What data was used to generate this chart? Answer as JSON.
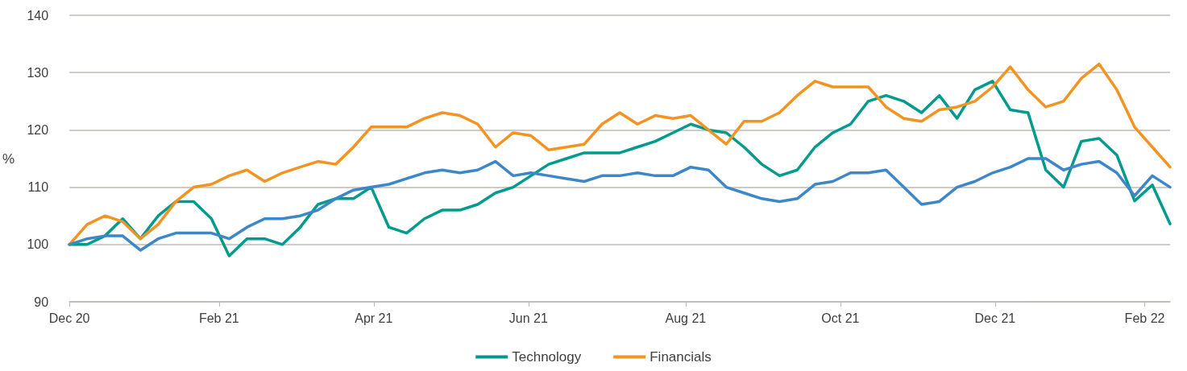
{
  "chart_data": {
    "type": "line",
    "ylabel": "%",
    "x": [
      "2020-12-31",
      "2021-01-07",
      "2021-01-14",
      "2021-01-21",
      "2021-01-28",
      "2021-02-04",
      "2021-02-11",
      "2021-02-18",
      "2021-02-25",
      "2021-03-04",
      "2021-03-11",
      "2021-03-18",
      "2021-03-25",
      "2021-04-01",
      "2021-04-08",
      "2021-04-15",
      "2021-04-22",
      "2021-04-29",
      "2021-05-06",
      "2021-05-13",
      "2021-05-20",
      "2021-05-27",
      "2021-06-03",
      "2021-06-10",
      "2021-06-17",
      "2021-06-24",
      "2021-07-01",
      "2021-07-08",
      "2021-07-15",
      "2021-07-22",
      "2021-07-29",
      "2021-08-05",
      "2021-08-12",
      "2021-08-19",
      "2021-08-26",
      "2021-09-02",
      "2021-09-09",
      "2021-09-16",
      "2021-09-23",
      "2021-09-30",
      "2021-10-07",
      "2021-10-14",
      "2021-10-21",
      "2021-10-28",
      "2021-11-04",
      "2021-11-11",
      "2021-11-18",
      "2021-11-25",
      "2021-12-02",
      "2021-12-09",
      "2021-12-16",
      "2021-12-23",
      "2021-12-30",
      "2022-01-06",
      "2022-01-13",
      "2022-01-20",
      "2022-01-27",
      "2022-02-03",
      "2022-02-10",
      "2022-02-17",
      "2022-02-24",
      "2022-03-03",
      "2022-03-10"
    ],
    "series": [
      {
        "name": "Technology",
        "color": "#009a8e",
        "values": [
          100,
          100,
          101.5,
          104.5,
          101,
          105,
          107.5,
          107.5,
          104.5,
          98,
          101,
          101,
          100,
          103,
          107,
          108,
          108,
          110,
          103,
          102,
          104.5,
          106,
          106,
          107,
          109,
          110,
          112,
          114,
          115,
          116,
          116,
          116,
          117,
          118,
          119.5,
          121,
          120,
          119.5,
          117,
          114,
          112,
          113,
          117,
          119.5,
          121,
          125,
          126,
          125,
          123,
          126,
          122,
          127,
          128.5,
          123.5,
          123,
          113,
          110,
          118,
          118.5,
          115.6,
          107.6,
          110.4,
          103.6
        ]
      },
      {
        "name": "Financials",
        "color": "#f39322",
        "values": [
          100,
          103.5,
          105,
          104,
          101,
          103.5,
          107.5,
          110,
          110.5,
          112,
          113,
          111,
          112.5,
          113.5,
          114.5,
          114,
          117,
          120.5,
          120.5,
          120.5,
          122,
          123,
          122.5,
          121,
          117,
          119.5,
          119,
          116.5,
          117,
          117.5,
          121,
          123,
          121,
          122.5,
          122,
          122.5,
          120,
          117.5,
          121.5,
          121.5,
          123,
          126,
          128.5,
          127.5,
          127.5,
          127.5,
          124,
          122,
          121.5,
          123.5,
          124,
          125,
          127.5,
          131,
          127,
          124,
          125,
          129,
          131.5,
          127,
          120.5,
          117,
          113.5
        ]
      },
      {
        "color": "#3d87c8",
        "values": [
          100,
          101,
          101.5,
          101.5,
          99,
          101,
          102,
          102,
          102,
          101,
          103,
          104.5,
          104.5,
          105,
          106,
          108,
          109.5,
          110,
          110.5,
          111.5,
          112.5,
          113,
          112.5,
          113,
          114.5,
          112,
          112.5,
          112,
          111.5,
          111,
          112,
          112,
          112.5,
          112,
          112,
          113.5,
          113,
          110,
          109,
          108,
          107.5,
          108,
          110.5,
          111,
          112.5,
          112.5,
          113,
          110,
          107,
          107.5,
          110,
          111,
          112.5,
          113.5,
          115,
          115,
          113,
          114,
          114.5,
          112.5,
          108.5,
          112,
          110
        ]
      }
    ],
    "xlim": [
      "2020-12-31",
      "2022-03-10"
    ],
    "xticks": [
      {
        "value": "2020-12-31",
        "label": "Dec 20"
      },
      {
        "value": "2021-02-28",
        "label": "Feb 21"
      },
      {
        "value": "2021-04-30",
        "label": "Apr 21"
      },
      {
        "value": "2021-06-30",
        "label": "Jun 21"
      },
      {
        "value": "2021-08-31",
        "label": "Aug 21"
      },
      {
        "value": "2021-10-31",
        "label": "Oct 21"
      },
      {
        "value": "2021-12-31",
        "label": "Dec 21"
      },
      {
        "value": "2022-02-28",
        "label": "Feb 22"
      }
    ],
    "ylim": [
      90,
      140
    ],
    "yticks": [
      90,
      100,
      110,
      120,
      130,
      140
    ],
    "grid": "y",
    "legend": "bottom",
    "marker": "none",
    "line_style": "solid"
  }
}
